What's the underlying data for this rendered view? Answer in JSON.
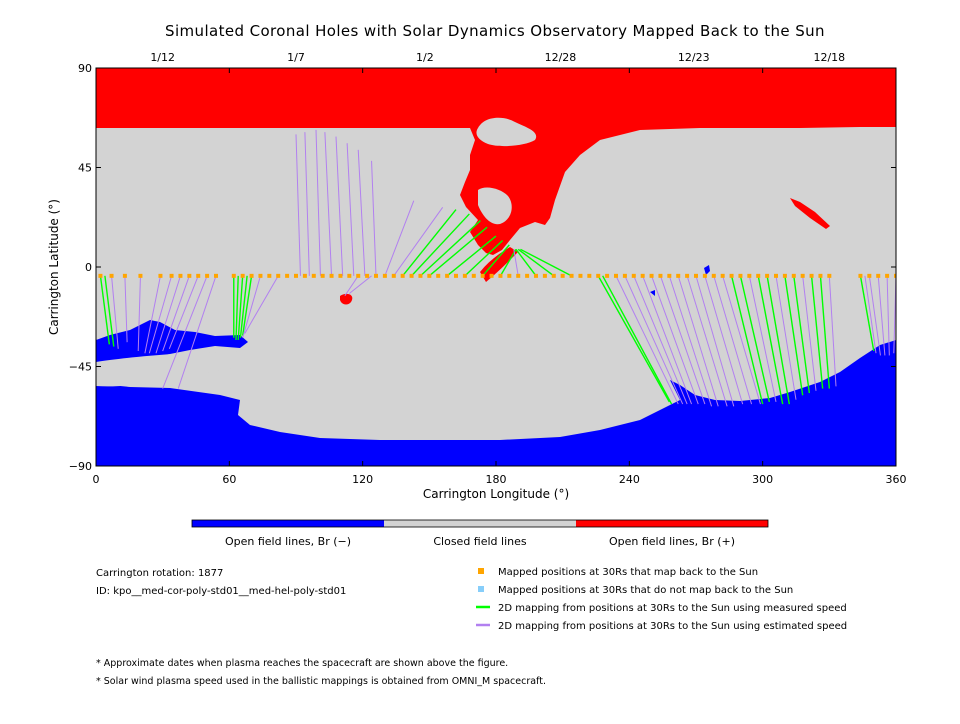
{
  "chart_data": {
    "type": "map",
    "title": "Simulated Coronal Holes with Solar Dynamics Observatory Mapped Back to the Sun",
    "xlabel": "Carrington Longitude (°)",
    "ylabel": "Carrington Latitude (°)",
    "xlim": [
      0,
      360
    ],
    "ylim": [
      -90,
      90
    ],
    "x_ticks": [
      0,
      60,
      120,
      180,
      240,
      300,
      360
    ],
    "y_ticks": [
      90,
      45,
      0,
      -45,
      -90
    ],
    "y_tick_labels": [
      "90",
      "45",
      "0",
      "−45",
      "−90"
    ],
    "top_axis_dates": [
      {
        "label": "1/12",
        "lon": 30
      },
      {
        "label": "1/7",
        "lon": 90
      },
      {
        "label": "1/2",
        "lon": 148
      },
      {
        "label": "12/28",
        "lon": 209
      },
      {
        "label": "12/23",
        "lon": 269
      },
      {
        "label": "12/18",
        "lon": 330
      }
    ],
    "colorbar": [
      {
        "label": "Open field lines, Br (−)",
        "color": "#0000ff"
      },
      {
        "label": "Closed field lines",
        "color": "#d3d3d3"
      },
      {
        "label": "Open field lines, Br (+)",
        "color": "#ff0000"
      }
    ],
    "legend": [
      {
        "label": "Mapped positions at 30Rs that map back to the Sun",
        "color": "#ffa500",
        "kind": "square"
      },
      {
        "label": "Mapped positions at 30Rs that do not map back to the Sun",
        "color": "#87cefa",
        "kind": "square"
      },
      {
        "label": "2D mapping from positions at 30Rs to the Sun using measured speed",
        "color": "#00ff00",
        "kind": "line"
      },
      {
        "label": "2D mapping from positions at 30Rs to the Sun using estimated speed",
        "color": "#b280f0",
        "kind": "line"
      }
    ],
    "info": {
      "rotation": "Carrington rotation: 1877",
      "id": "ID: kpo__med-cor-poly-std01__med-hel-poly-std01"
    },
    "footnotes": [
      "* Approximate dates when plasma reaches the spacecraft are shown above the figure.",
      "* Solar wind plasma speed used in the ballistic mappings is obtained from OMNI_M spacecraft."
    ],
    "mapped_positions_lon": [
      2,
      7,
      13,
      20,
      29,
      34,
      38,
      42,
      46,
      50,
      54,
      62,
      66,
      70,
      74,
      78,
      82,
      86,
      90,
      94,
      98,
      102,
      106,
      110,
      114,
      118,
      122,
      126,
      130,
      134,
      138,
      142,
      146,
      150,
      154,
      158,
      162,
      166,
      170,
      174,
      178,
      182,
      186,
      190,
      194,
      198,
      202,
      206,
      210,
      214,
      218,
      222,
      226,
      230,
      234,
      238,
      242,
      246,
      250,
      254,
      258,
      262,
      266,
      270,
      274,
      278,
      282,
      286,
      290,
      294,
      298,
      302,
      306,
      310,
      314,
      318,
      322,
      326,
      330,
      344,
      348,
      352,
      356,
      360
    ],
    "mapped_positions_lat": -4,
    "mapping_lines": [
      {
        "from": [
          2,
          -4
        ],
        "to": [
          6,
          -35
        ],
        "type": "measured"
      },
      {
        "from": [
          4,
          -4
        ],
        "to": [
          8,
          -36
        ],
        "type": "measured"
      },
      {
        "from": [
          7,
          -4
        ],
        "to": [
          10,
          -37
        ],
        "type": "estimated"
      },
      {
        "from": [
          13,
          -4
        ],
        "to": [
          14,
          -34
        ],
        "type": "estimated"
      },
      {
        "from": [
          20,
          -4
        ],
        "to": [
          19,
          -38
        ],
        "type": "estimated"
      },
      {
        "from": [
          29,
          -4
        ],
        "to": [
          22,
          -39
        ],
        "type": "estimated"
      },
      {
        "from": [
          34,
          -4
        ],
        "to": [
          24,
          -39
        ],
        "type": "estimated"
      },
      {
        "from": [
          38,
          -4
        ],
        "to": [
          27,
          -39
        ],
        "type": "estimated"
      },
      {
        "from": [
          42,
          -4
        ],
        "to": [
          30,
          -38
        ],
        "type": "estimated"
      },
      {
        "from": [
          46,
          -4
        ],
        "to": [
          33,
          -37
        ],
        "type": "estimated"
      },
      {
        "from": [
          50,
          -4
        ],
        "to": [
          30,
          -55
        ],
        "type": "estimated"
      },
      {
        "from": [
          54,
          -4
        ],
        "to": [
          37,
          -55
        ],
        "type": "estimated"
      },
      {
        "from": [
          62,
          -4
        ],
        "to": [
          62,
          -32
        ],
        "type": "measured"
      },
      {
        "from": [
          64,
          -4
        ],
        "to": [
          63,
          -33
        ],
        "type": "measured"
      },
      {
        "from": [
          66,
          -4
        ],
        "to": [
          64,
          -33
        ],
        "type": "measured"
      },
      {
        "from": [
          68,
          -4
        ],
        "to": [
          65,
          -32
        ],
        "type": "measured"
      },
      {
        "from": [
          70,
          -4
        ],
        "to": [
          66,
          -31
        ],
        "type": "measured"
      },
      {
        "from": [
          74,
          -4
        ],
        "to": [
          66,
          -32
        ],
        "type": "estimated"
      },
      {
        "from": [
          82,
          -4
        ],
        "to": [
          67,
          -30
        ],
        "type": "estimated"
      },
      {
        "from": [
          92,
          -4
        ],
        "to": [
          90,
          60
        ],
        "type": "estimated"
      },
      {
        "from": [
          96,
          -4
        ],
        "to": [
          94,
          61
        ],
        "type": "estimated"
      },
      {
        "from": [
          101,
          -4
        ],
        "to": [
          99,
          62
        ],
        "type": "estimated"
      },
      {
        "from": [
          106,
          -4
        ],
        "to": [
          103,
          61
        ],
        "type": "estimated"
      },
      {
        "from": [
          111,
          -4
        ],
        "to": [
          108,
          59
        ],
        "type": "estimated"
      },
      {
        "from": [
          116,
          -4
        ],
        "to": [
          113,
          56
        ],
        "type": "estimated"
      },
      {
        "from": [
          121,
          -4
        ],
        "to": [
          118,
          53
        ],
        "type": "estimated"
      },
      {
        "from": [
          126,
          -4
        ],
        "to": [
          124,
          48
        ],
        "type": "estimated"
      },
      {
        "from": [
          130,
          -4
        ],
        "to": [
          143,
          30
        ],
        "type": "estimated"
      },
      {
        "from": [
          134,
          -4
        ],
        "to": [
          156,
          27
        ],
        "type": "estimated"
      },
      {
        "from": [
          138,
          -4
        ],
        "to": [
          162,
          26
        ],
        "type": "measured"
      },
      {
        "from": [
          142,
          -4
        ],
        "to": [
          168,
          24
        ],
        "type": "measured"
      },
      {
        "from": [
          146,
          -4
        ],
        "to": [
          173,
          21
        ],
        "type": "measured"
      },
      {
        "from": [
          150,
          -4
        ],
        "to": [
          176,
          18
        ],
        "type": "measured"
      },
      {
        "from": [
          158,
          -4
        ],
        "to": [
          180,
          14
        ],
        "type": "measured"
      },
      {
        "from": [
          166,
          -4
        ],
        "to": [
          183,
          12
        ],
        "type": "measured"
      },
      {
        "from": [
          174,
          -4
        ],
        "to": [
          186,
          10
        ],
        "type": "measured"
      },
      {
        "from": [
          182,
          -4
        ],
        "to": [
          189,
          8
        ],
        "type": "measured"
      },
      {
        "from": [
          190,
          -4
        ],
        "to": [
          188,
          8
        ],
        "type": "estimated"
      },
      {
        "from": [
          198,
          -4
        ],
        "to": [
          189,
          8
        ],
        "type": "measured"
      },
      {
        "from": [
          206,
          -4
        ],
        "to": [
          190,
          8
        ],
        "type": "measured"
      },
      {
        "from": [
          214,
          -4
        ],
        "to": [
          191,
          8
        ],
        "type": "measured"
      },
      {
        "from": [
          118,
          -4
        ],
        "to": [
          112,
          -13
        ],
        "type": "estimated"
      },
      {
        "from": [
          124,
          -4
        ],
        "to": [
          114,
          -12
        ],
        "type": "estimated"
      },
      {
        "from": [
          226,
          -4
        ],
        "to": [
          258,
          -61
        ],
        "type": "measured"
      },
      {
        "from": [
          228,
          -4
        ],
        "to": [
          259,
          -62
        ],
        "type": "measured"
      },
      {
        "from": [
          234,
          -4
        ],
        "to": [
          262,
          -62
        ],
        "type": "estimated"
      },
      {
        "from": [
          238,
          -4
        ],
        "to": [
          264,
          -62
        ],
        "type": "estimated"
      },
      {
        "from": [
          242,
          -4
        ],
        "to": [
          266,
          -62
        ],
        "type": "estimated"
      },
      {
        "from": [
          246,
          -4
        ],
        "to": [
          268,
          -62
        ],
        "type": "estimated"
      },
      {
        "from": [
          250,
          -4
        ],
        "to": [
          271,
          -62
        ],
        "type": "estimated"
      },
      {
        "from": [
          254,
          -4
        ],
        "to": [
          274,
          -62
        ],
        "type": "estimated"
      },
      {
        "from": [
          258,
          -4
        ],
        "to": [
          277,
          -63
        ],
        "type": "estimated"
      },
      {
        "from": [
          262,
          -4
        ],
        "to": [
          280,
          -63
        ],
        "type": "estimated"
      },
      {
        "from": [
          266,
          -4
        ],
        "to": [
          284,
          -63
        ],
        "type": "estimated"
      },
      {
        "from": [
          270,
          -4
        ],
        "to": [
          287,
          -63
        ],
        "type": "estimated"
      },
      {
        "from": [
          274,
          -4
        ],
        "to": [
          291,
          -62
        ],
        "type": "estimated"
      },
      {
        "from": [
          278,
          -4
        ],
        "to": [
          295,
          -62
        ],
        "type": "estimated"
      },
      {
        "from": [
          282,
          -4
        ],
        "to": [
          299,
          -62
        ],
        "type": "estimated"
      },
      {
        "from": [
          286,
          -4
        ],
        "to": [
          300,
          -62
        ],
        "type": "measured"
      },
      {
        "from": [
          290,
          -4
        ],
        "to": [
          303,
          -61
        ],
        "type": "measured"
      },
      {
        "from": [
          294,
          -4
        ],
        "to": [
          306,
          -61
        ],
        "type": "estimated"
      },
      {
        "from": [
          298,
          -4
        ],
        "to": [
          309,
          -62
        ],
        "type": "measured"
      },
      {
        "from": [
          302,
          -4
        ],
        "to": [
          312,
          -62
        ],
        "type": "measured"
      },
      {
        "from": [
          306,
          -4
        ],
        "to": [
          315,
          -60
        ],
        "type": "estimated"
      },
      {
        "from": [
          310,
          -4
        ],
        "to": [
          318,
          -58
        ],
        "type": "measured"
      },
      {
        "from": [
          314,
          -4
        ],
        "to": [
          321,
          -57
        ],
        "type": "measured"
      },
      {
        "from": [
          318,
          -4
        ],
        "to": [
          324,
          -56
        ],
        "type": "estimated"
      },
      {
        "from": [
          322,
          -4
        ],
        "to": [
          327,
          -55
        ],
        "type": "measured"
      },
      {
        "from": [
          326,
          -4
        ],
        "to": [
          330,
          -55
        ],
        "type": "measured"
      },
      {
        "from": [
          330,
          -4
        ],
        "to": [
          333,
          -54
        ],
        "type": "estimated"
      },
      {
        "from": [
          344,
          -4
        ],
        "to": [
          350,
          -38
        ],
        "type": "measured"
      },
      {
        "from": [
          346,
          -4
        ],
        "to": [
          351,
          -39
        ],
        "type": "estimated"
      },
      {
        "from": [
          348,
          -4
        ],
        "to": [
          353,
          -40
        ],
        "type": "estimated"
      },
      {
        "from": [
          352,
          -4
        ],
        "to": [
          355,
          -40
        ],
        "type": "estimated"
      },
      {
        "from": [
          356,
          -4
        ],
        "to": [
          357,
          -40
        ],
        "type": "estimated"
      },
      {
        "from": [
          360,
          -4
        ],
        "to": [
          359,
          -39
        ],
        "type": "estimated"
      }
    ]
  }
}
